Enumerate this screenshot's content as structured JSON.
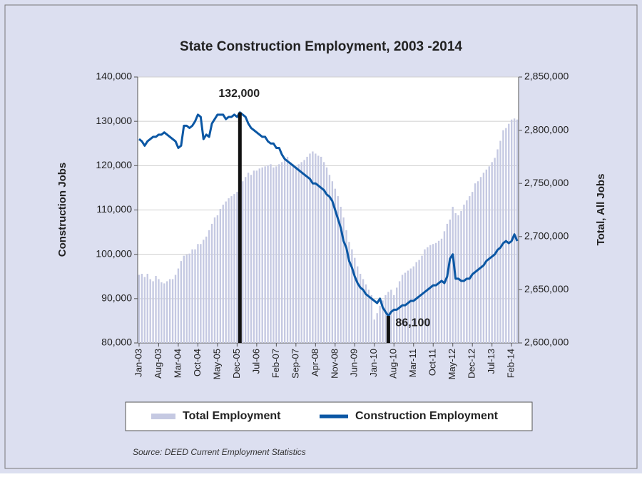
{
  "chart_data": {
    "type": "combo",
    "title": "State Construction Employment, 2003 -2014",
    "y_label": "Construction Jobs",
    "y2_label": "Total, All Jobs",
    "source": "Source: DEED Current Employment Statistics",
    "categories": [
      "Jan-03",
      null,
      null,
      null,
      null,
      null,
      null,
      "Aug-03",
      null,
      null,
      null,
      null,
      null,
      null,
      "Mar-04",
      null,
      null,
      null,
      null,
      null,
      null,
      "Oct-04",
      null,
      null,
      null,
      null,
      null,
      null,
      "May-05",
      null,
      null,
      null,
      null,
      null,
      null,
      "Dec-05",
      null,
      null,
      null,
      null,
      null,
      null,
      "Jul-06",
      null,
      null,
      null,
      null,
      null,
      null,
      "Feb-07",
      null,
      null,
      null,
      null,
      null,
      null,
      "Sep-07",
      null,
      null,
      null,
      null,
      null,
      null,
      "Apr-08",
      null,
      null,
      null,
      null,
      null,
      null,
      "Nov-08",
      null,
      null,
      null,
      null,
      null,
      null,
      "Jun-09",
      null,
      null,
      null,
      null,
      null,
      null,
      "Jan-10",
      null,
      null,
      null,
      null,
      null,
      null,
      "Aug-10",
      null,
      null,
      null,
      null,
      null,
      null,
      "Mar-11",
      null,
      null,
      null,
      null,
      null,
      null,
      "Oct-11",
      null,
      null,
      null,
      null,
      null,
      null,
      "May-12",
      null,
      null,
      null,
      null,
      null,
      null,
      "Dec-12",
      null,
      null,
      null,
      null,
      null,
      null,
      "Jul-13",
      null,
      null,
      null,
      null,
      null,
      null,
      "Feb-14",
      null,
      null
    ],
    "series": [
      {
        "name": "Total Employment",
        "type": "bar",
        "axis": "y2",
        "color": "#c5c9e2",
        "values": [
          2664000,
          2665000,
          2662000,
          2665000,
          2660000,
          2658000,
          2663000,
          2660000,
          2657000,
          2656000,
          2658000,
          2660000,
          2660000,
          2664000,
          2670000,
          2677000,
          2682000,
          2683000,
          2684000,
          2688000,
          2688000,
          2693000,
          2693000,
          2697000,
          2700000,
          2706000,
          2712000,
          2718000,
          2720000,
          2726000,
          2730000,
          2733000,
          2736000,
          2738000,
          2740000,
          2742000,
          2745000,
          2752000,
          2756000,
          2760000,
          2758000,
          2762000,
          2762000,
          2764000,
          2765000,
          2766000,
          2767000,
          2768000,
          2765000,
          2766000,
          2768000,
          2770000,
          2772000,
          2775000,
          2770000,
          2768000,
          2766000,
          2768000,
          2770000,
          2772000,
          2775000,
          2778000,
          2780000,
          2778000,
          2776000,
          2775000,
          2770000,
          2765000,
          2758000,
          2752000,
          2745000,
          2738000,
          2728000,
          2718000,
          2706000,
          2695000,
          2688000,
          2680000,
          2672000,
          2665000,
          2660000,
          2655000,
          2650000,
          2645000,
          2622000,
          2628000,
          2635000,
          2640000,
          2645000,
          2648000,
          2650000,
          2645000,
          2652000,
          2658000,
          2664000,
          2666000,
          2668000,
          2670000,
          2672000,
          2676000,
          2678000,
          2682000,
          2688000,
          2690000,
          2692000,
          2693000,
          2694000,
          2696000,
          2698000,
          2705000,
          2712000,
          2716000,
          2728000,
          2722000,
          2720000,
          2724000,
          2730000,
          2734000,
          2738000,
          2742000,
          2750000,
          2752000,
          2756000,
          2760000,
          2763000,
          2766000,
          2770000,
          2774000,
          2782000,
          2790000,
          2800000,
          2802000,
          2806000,
          2810000,
          2811000,
          2810000
        ]
      },
      {
        "name": "Construction Employment",
        "type": "line",
        "color": "#0b57a4",
        "values": [
          126000,
          125500,
          124500,
          125500,
          126000,
          126500,
          126500,
          127000,
          127000,
          127500,
          127000,
          126500,
          126000,
          125500,
          124000,
          124500,
          129000,
          129000,
          128500,
          129000,
          130000,
          131500,
          131000,
          126000,
          127000,
          126500,
          129500,
          130500,
          131500,
          131500,
          131500,
          130500,
          131000,
          131000,
          131500,
          131000,
          132000,
          131500,
          131000,
          129500,
          128500,
          128000,
          127500,
          127000,
          126500,
          126500,
          125500,
          125000,
          125000,
          124000,
          124000,
          122500,
          121500,
          121000,
          120500,
          120000,
          119500,
          119000,
          118500,
          118000,
          117500,
          117000,
          116000,
          116000,
          115500,
          115000,
          114500,
          113500,
          113000,
          112000,
          110000,
          108000,
          106000,
          103000,
          101500,
          98500,
          97000,
          95000,
          93500,
          92500,
          92000,
          91000,
          90500,
          90000,
          89500,
          89000,
          90000,
          88000,
          87000,
          86100,
          87000,
          87500,
          87500,
          88000,
          88500,
          88500,
          89000,
          89500,
          89500,
          90000,
          90500,
          91000,
          91500,
          92000,
          92500,
          93000,
          93000,
          93500,
          94000,
          93500,
          95000,
          99000,
          100000,
          94500,
          94500,
          94000,
          94000,
          94500,
          94500,
          95500,
          96000,
          96500,
          97000,
          97500,
          98500,
          99000,
          99500,
          100000,
          101000,
          101500,
          102500,
          103000,
          102500,
          103000,
          104500,
          103000
        ]
      }
    ],
    "annotations": [
      {
        "text": "132,000",
        "value": 132000
      },
      {
        "text": "86,100",
        "value": 86100
      }
    ],
    "ylim": [
      80000,
      140000
    ],
    "yticks": [
      {
        "value": 80000,
        "label": "80,000"
      },
      {
        "value": 90000,
        "label": "90,000"
      },
      {
        "value": 100000,
        "label": "100,000"
      },
      {
        "value": 110000,
        "label": "110,000"
      },
      {
        "value": 120000,
        "label": "120,000"
      },
      {
        "value": 130000,
        "label": "130,000"
      },
      {
        "value": 140000,
        "label": "140,000"
      }
    ],
    "y2lim": [
      2600000,
      2850000
    ],
    "y2ticks": [
      {
        "value": 2600000,
        "label": "2,600,000"
      },
      {
        "value": 2650000,
        "label": "2,650,000"
      },
      {
        "value": 2700000,
        "label": "2,700,000"
      },
      {
        "value": 2750000,
        "label": "2,750,000"
      },
      {
        "value": 2800000,
        "label": "2,800,000"
      },
      {
        "value": 2850000,
        "label": "2,850,000"
      }
    ],
    "grid": true
  }
}
